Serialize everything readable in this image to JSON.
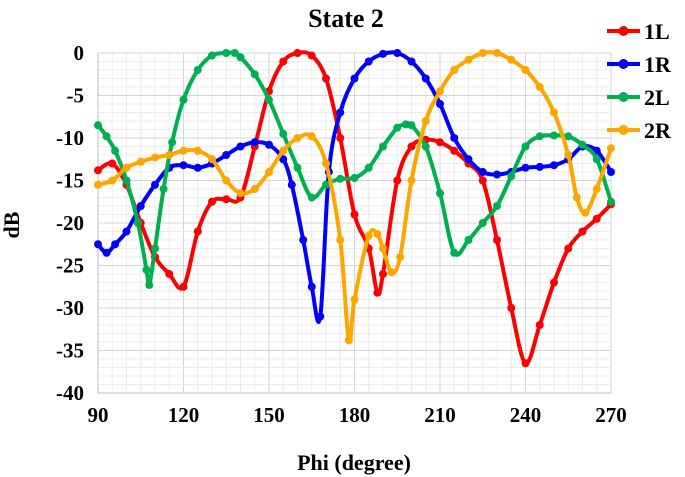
{
  "chart_data": {
    "type": "line",
    "title": "State 2",
    "xlabel": "Phi (degree)",
    "ylabel": "dB",
    "xlim": [
      90,
      270
    ],
    "ylim": [
      -40,
      0
    ],
    "xticks": [
      90,
      120,
      150,
      180,
      210,
      240,
      270
    ],
    "yticks": [
      0,
      -5,
      -10,
      -15,
      -20,
      -25,
      -30,
      -35,
      -40
    ],
    "grid": true,
    "legend_position": "right",
    "series": [
      {
        "name": "1L",
        "color": "#ff0000",
        "x": [
          90,
          95,
          100,
          105,
          110,
          115,
          120,
          125,
          130,
          135,
          140,
          145,
          150,
          155,
          160,
          165,
          170,
          175,
          180,
          185,
          188,
          190,
          195,
          200,
          205,
          210,
          215,
          220,
          225,
          230,
          235,
          240,
          245,
          250,
          255,
          260,
          265,
          270
        ],
        "values": [
          -13.8,
          -13,
          -15.5,
          -20,
          -24,
          -26,
          -27.5,
          -21,
          -17.5,
          -17.2,
          -17,
          -11,
          -4.5,
          -1,
          0,
          -0.3,
          -3,
          -10,
          -19,
          -23,
          -28.2,
          -26,
          -15,
          -11,
          -10.2,
          -10.5,
          -11.5,
          -13,
          -15,
          -22,
          -30,
          -36.5,
          -32,
          -27,
          -23,
          -21,
          -19.5,
          -17.8
        ]
      },
      {
        "name": "1R",
        "color": "#0000ff",
        "x": [
          90,
          93,
          96,
          100,
          105,
          110,
          115,
          120,
          125,
          130,
          135,
          140,
          145,
          150,
          155,
          158,
          162,
          165,
          168,
          171,
          175,
          180,
          185,
          190,
          195,
          200,
          205,
          210,
          215,
          220,
          225,
          230,
          235,
          240,
          245,
          250,
          255,
          260,
          265,
          270
        ],
        "values": [
          -22.5,
          -23.5,
          -22.5,
          -21,
          -18,
          -15.5,
          -13.5,
          -13.2,
          -13.5,
          -13,
          -12,
          -11,
          -10.5,
          -10.8,
          -12.5,
          -15.5,
          -22,
          -27.5,
          -31,
          -14,
          -7,
          -3,
          -1,
          -0.1,
          0,
          -1,
          -3,
          -6,
          -10,
          -12.5,
          -14,
          -14.3,
          -14,
          -13.5,
          -13.4,
          -13.2,
          -12.5,
          -11,
          -11.5,
          -14
        ]
      },
      {
        "name": "2L",
        "color": "#00b050",
        "x": [
          90,
          93,
          96,
          100,
          104,
          107,
          108,
          110,
          113,
          116,
          120,
          125,
          130,
          135,
          138,
          140,
          145,
          150,
          155,
          160,
          165,
          170,
          175,
          180,
          185,
          190,
          195,
          198,
          200,
          205,
          210,
          215,
          220,
          225,
          230,
          235,
          240,
          245,
          250,
          255,
          260,
          265,
          270
        ],
        "values": [
          -8.5,
          -9.8,
          -11.5,
          -15,
          -20,
          -25.5,
          -27.3,
          -23,
          -16,
          -10.5,
          -5.5,
          -2,
          -0.3,
          0,
          0,
          -0.5,
          -2.5,
          -5.5,
          -9.5,
          -13.5,
          -17,
          -15.5,
          -14.8,
          -14.7,
          -13.5,
          -11,
          -8.8,
          -8.4,
          -8.5,
          -11,
          -16.5,
          -23.5,
          -22,
          -20,
          -18,
          -14.5,
          -11,
          -9.8,
          -9.7,
          -9.8,
          -10.8,
          -12.5,
          -17.5
        ]
      },
      {
        "name": "2R",
        "color": "#ffa500",
        "x": [
          90,
          95,
          100,
          105,
          110,
          115,
          120,
          125,
          130,
          135,
          140,
          145,
          150,
          155,
          160,
          165,
          170,
          175,
          178,
          180,
          185,
          188,
          190,
          193,
          196,
          200,
          205,
          210,
          215,
          220,
          225,
          230,
          235,
          240,
          245,
          250,
          255,
          258,
          261,
          265,
          270
        ],
        "values": [
          -15.5,
          -15,
          -13.5,
          -12.8,
          -12.3,
          -12,
          -11.5,
          -11.5,
          -12.5,
          -15,
          -16.5,
          -16,
          -14,
          -11.5,
          -10,
          -9.8,
          -13,
          -22,
          -33.8,
          -29,
          -21.5,
          -21.3,
          -23,
          -25.8,
          -24,
          -15,
          -8,
          -4.5,
          -2,
          -0.8,
          0,
          0,
          -0.8,
          -2,
          -4,
          -7,
          -12,
          -17,
          -18.8,
          -16,
          -11.2
        ]
      }
    ]
  }
}
